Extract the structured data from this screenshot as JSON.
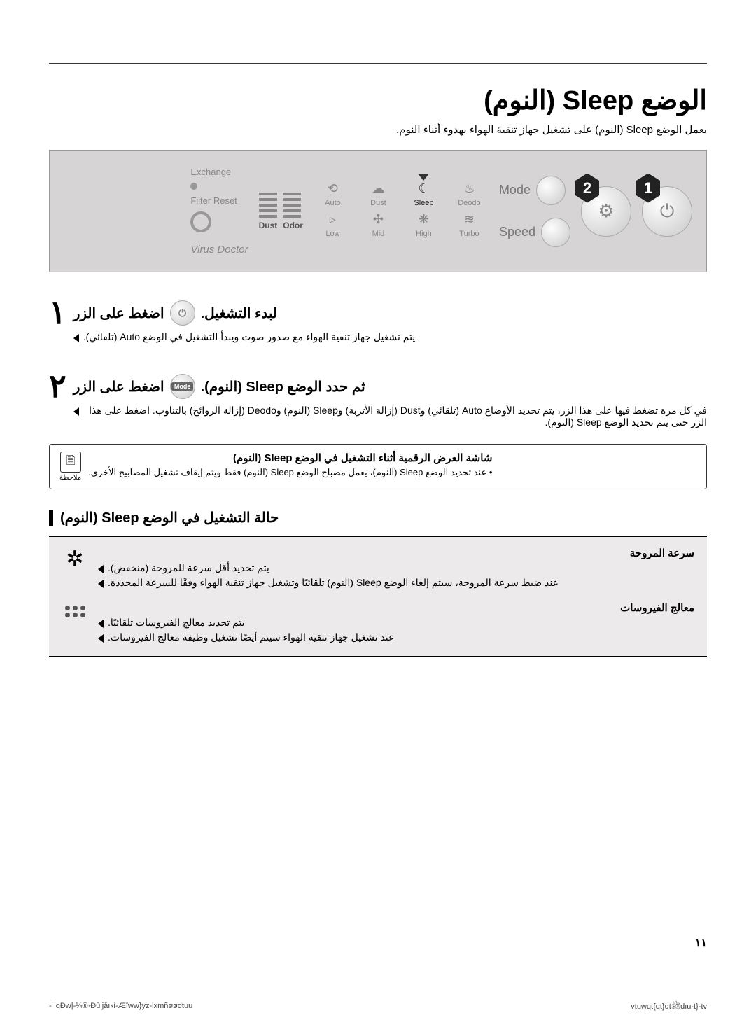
{
  "title": "الوضع Sleep (النوم)",
  "subtitle": "يعمل الوضع Sleep (النوم) على تشغيل جهاز تنقية الهواء بهدوء أثناء النوم.",
  "panel": {
    "badge1": "1",
    "badge2": "2",
    "mode_label": "Mode",
    "speed_label": "Speed",
    "icons_row1": [
      "Auto",
      "Dust",
      "Sleep",
      "Deodo"
    ],
    "icons_row2": [
      "Low",
      "Mid",
      "High",
      "Turbo"
    ],
    "bars_labels": [
      "Dust",
      "Odor"
    ],
    "exchange": "Exchange",
    "filter_reset": "Filter Reset",
    "virus": "Virus Doctor"
  },
  "step1": {
    "num": "١",
    "header_a": "اضغط على الزر",
    "header_b": "لبدء التشغيل.",
    "line1": "يتم تشغيل جهاز تنقية الهواء مع صدور صوت ويبدأ التشغيل في الوضع Auto (تلقائي)."
  },
  "step2": {
    "num": "٢",
    "header_a": "اضغط على الزر",
    "mode_small": "Mode",
    "header_b": "ثم حدد الوضع Sleep (النوم).",
    "line1": "في كل مرة تضغط فيها على هذا الزر، يتم تحديد الأوضاع Auto (تلقائي) وDust (إزالة الأتربة) وSleep (النوم) وDeodo (إزالة الروائح) بالتناوب. اضغط على هذا الزر حتى يتم تحديد الوضع Sleep (النوم)."
  },
  "note": {
    "label": "ملاحظة",
    "title": "شاشة العرض الرقمية أثناء التشغيل في الوضع Sleep (النوم)",
    "text": "عند تحديد الوضع Sleep (النوم)، يعمل مصباح الوضع Sleep (النوم) فقط ويتم إيقاف تشغيل المصابيح الأخرى."
  },
  "section_title": "حالة التشغيل في الوضع Sleep (النوم)",
  "status": {
    "fan": {
      "title": "سرعة المروحة",
      "l1": "يتم تحديد أقل سرعة للمروحة (منخفض).",
      "l2": "عند ضبط سرعة المروحة، سيتم إلغاء الوضع Sleep (النوم) تلقائيًا وتشغيل جهاز تنقية الهواء وفقًا للسرعة المحددة."
    },
    "virus": {
      "title": "معالج الفيروسات",
      "l1": "يتم تحديد معالج الفيروسات تلقائيًا.",
      "l2": "عند تشغيل جهاز تنقية الهواء سيتم أيضًا تشغيل وظيفة معالج الفيروسات."
    }
  },
  "page_num": "١١",
  "footer_left": "-¯qÐw|-¼®·Ðùijåıкí-Æïww}yz-lxmñøødtuu",
  "footer_right": "vtuwqt{qt}dtﷺdıu-t}-tv"
}
